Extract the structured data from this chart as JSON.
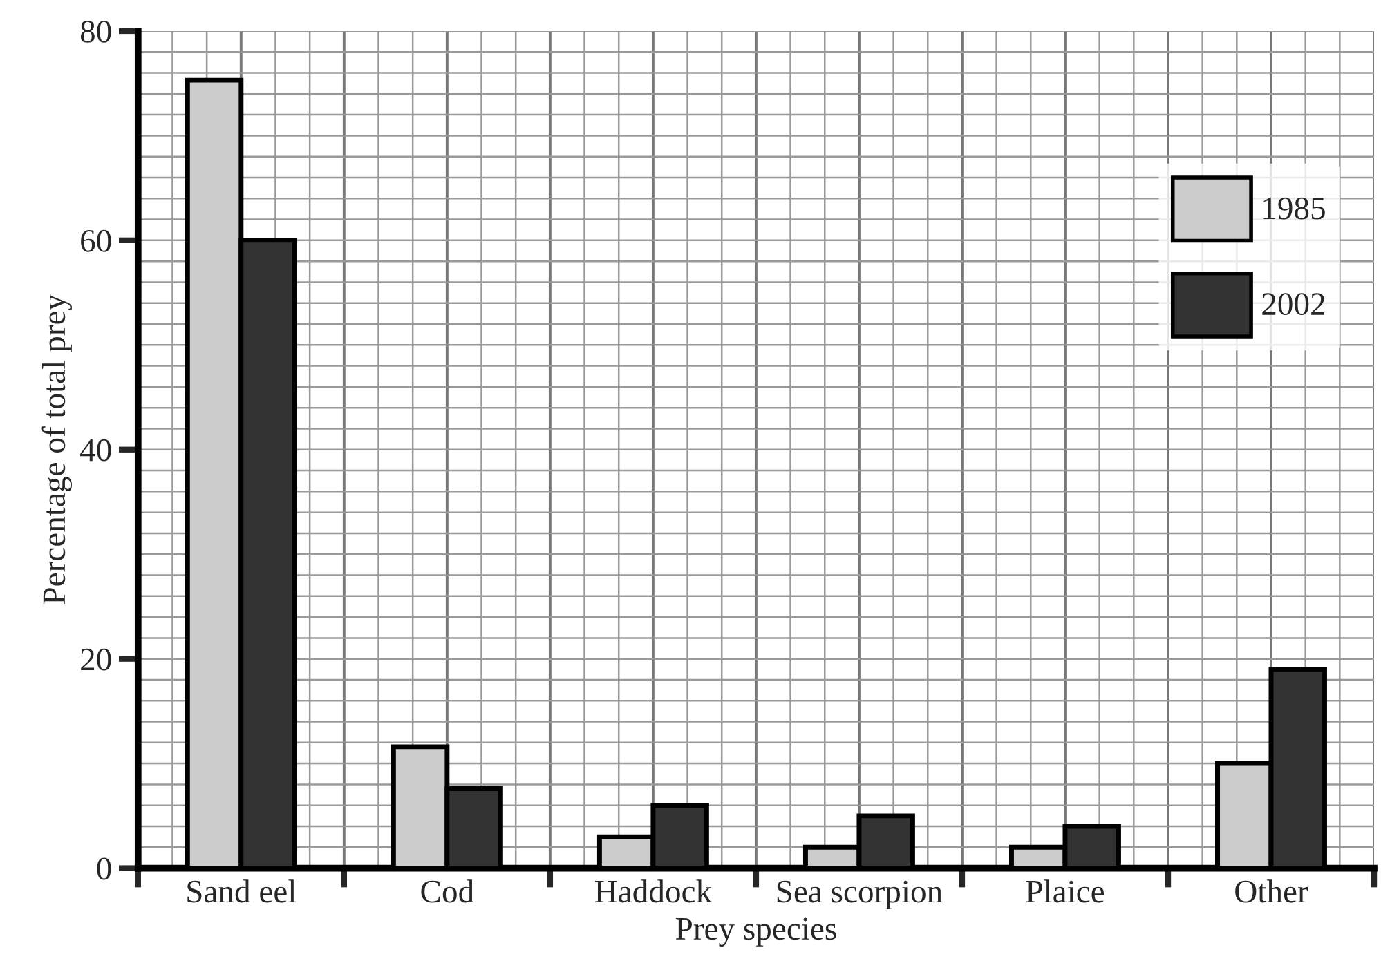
{
  "chart_data": {
    "type": "bar",
    "xlabel": "Prey species",
    "ylabel": "Percentage of total prey",
    "categories": [
      "Sand eel",
      "Cod",
      "Haddock",
      "Sea scorpion",
      "Plaice",
      "Other"
    ],
    "series": [
      {
        "name": "1985",
        "color": "#cccccc",
        "values": [
          75.3,
          11.6,
          3,
          2,
          2,
          10
        ]
      },
      {
        "name": "2002",
        "color": "#333333",
        "values": [
          60,
          7.6,
          6,
          5,
          4,
          19
        ]
      }
    ],
    "ylim": [
      0,
      80
    ],
    "yticks": [
      0,
      20,
      40,
      60,
      80
    ],
    "grid": true,
    "legend": "top right"
  }
}
